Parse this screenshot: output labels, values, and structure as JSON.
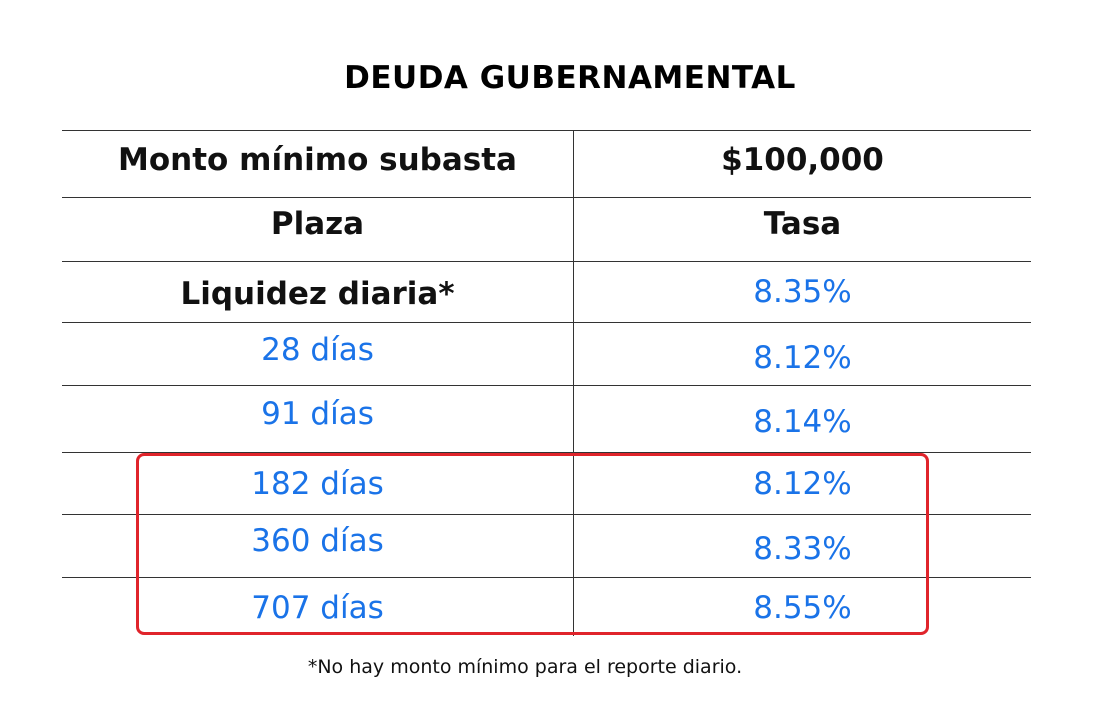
{
  "title": "DEUDA GUBERNAMENTAL",
  "table": {
    "header": {
      "left": "Monto mínimo subasta",
      "right": "$100,000"
    },
    "subheader": {
      "left": "Plaza",
      "right": "Tasa"
    },
    "rows": [
      {
        "plaza": "Liquidez diaria*",
        "tasa": "8.35%"
      },
      {
        "plaza": "28 días",
        "tasa": "8.12%"
      },
      {
        "plaza": "91 días",
        "tasa": "8.14%"
      },
      {
        "plaza": "182 días",
        "tasa": "8.12%"
      },
      {
        "plaza": "360 días",
        "tasa": "8.33%"
      },
      {
        "plaza": "707 días",
        "tasa": "8.55%"
      }
    ]
  },
  "highlight_color": "#e0242b",
  "accent_color": "#1a73e8",
  "footnote": "*No hay monto mínimo para el reporte diario."
}
